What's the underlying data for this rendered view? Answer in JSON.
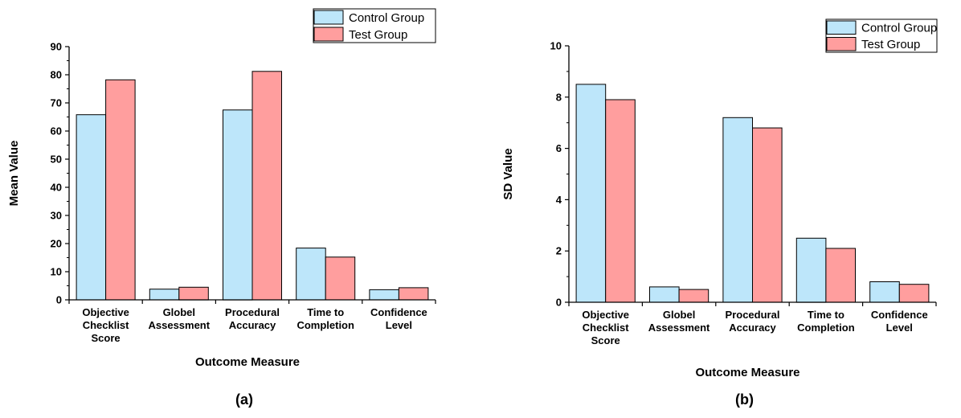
{
  "colors": {
    "control": "#BDE6FA",
    "test": "#FF9E9E",
    "axis": "#000000"
  },
  "legend": [
    "Control Group",
    "Test Group"
  ],
  "chart_data": [
    {
      "type": "bar",
      "panel": "(a)",
      "categories": [
        [
          "Objective",
          "Checklist",
          "Score"
        ],
        [
          "Globel",
          "Assessment"
        ],
        [
          "Procedural",
          "Accuracy"
        ],
        [
          "Time to",
          "Completion"
        ],
        [
          "Confidence",
          "Level"
        ]
      ],
      "series": [
        {
          "name": "Control Group",
          "values": [
            65.8,
            3.8,
            67.5,
            18.4,
            3.6
          ]
        },
        {
          "name": "Test Group",
          "values": [
            78.2,
            4.5,
            81.2,
            15.2,
            4.3
          ]
        }
      ],
      "xlabel": "Outcome Measure",
      "ylabel": "Mean Value",
      "ylim": [
        0,
        90
      ],
      "yticks": [
        0,
        10,
        20,
        30,
        40,
        50,
        60,
        70,
        80,
        90
      ],
      "legend_position": "top-right"
    },
    {
      "type": "bar",
      "panel": "(b)",
      "categories": [
        [
          "Objective",
          "Checklist",
          "Score"
        ],
        [
          "Globel",
          "Assessment"
        ],
        [
          "Procedural",
          "Accuracy"
        ],
        [
          "Time to",
          "Completion"
        ],
        [
          "Confidence",
          "Level"
        ]
      ],
      "series": [
        {
          "name": "Control Group",
          "values": [
            8.5,
            0.6,
            7.2,
            2.5,
            0.8
          ]
        },
        {
          "name": "Test Group",
          "values": [
            7.9,
            0.5,
            6.8,
            2.1,
            0.7
          ]
        }
      ],
      "xlabel": "Outcome Measure",
      "ylabel": "SD Value",
      "ylim": [
        0,
        10
      ],
      "yticks": [
        0,
        2,
        4,
        6,
        8,
        10
      ],
      "legend_position": "top-right"
    }
  ]
}
